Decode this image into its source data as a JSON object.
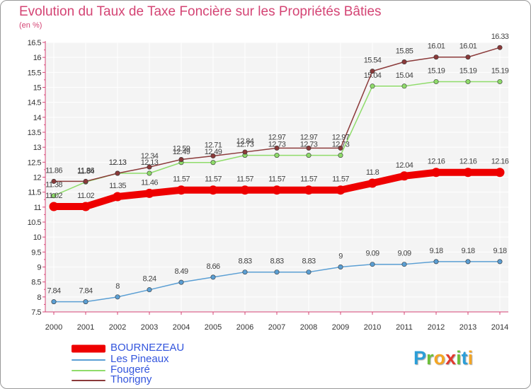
{
  "title": "Evolution du Taux de Taxe Foncière sur les Propriétés Bâties",
  "unit_label": "(en %)",
  "logo": {
    "letters": [
      "P",
      "r",
      "o",
      "x",
      "i",
      "t",
      "i"
    ],
    "colors": [
      "#2b9ed8",
      "#6cbf3a",
      "#f5a623",
      "#e23a2e",
      "#6cbf3a",
      "#2b9ed8",
      "#f5a623"
    ]
  },
  "chart_data": {
    "type": "line",
    "x": [
      2000,
      2001,
      2002,
      2003,
      2004,
      2005,
      2006,
      2007,
      2008,
      2009,
      2010,
      2011,
      2012,
      2013,
      2014
    ],
    "ylim": [
      7.5,
      16.5
    ],
    "yticks": [
      7.5,
      8,
      8.5,
      9,
      9.5,
      10,
      10.5,
      11,
      11.5,
      12,
      12.5,
      13,
      13.5,
      14,
      14.5,
      15,
      15.5,
      16,
      16.5
    ],
    "grid": true,
    "legend_position": "bottom-left",
    "series": [
      {
        "name": "BOURNEZEAU",
        "color": "#ee0000",
        "values": [
          11.02,
          11.02,
          11.35,
          11.46,
          11.57,
          11.57,
          11.57,
          11.57,
          11.57,
          11.57,
          11.8,
          12.04,
          12.16,
          12.16,
          12.16
        ],
        "labels": [
          "11.02",
          "11.02",
          "11.35",
          "11.46",
          "11.57",
          "11.57",
          "11.57",
          "11.57",
          "11.57",
          "11.57",
          "11.8",
          "12.04",
          "12.16",
          "12.16",
          "12.16"
        ]
      },
      {
        "name": "Les Pineaux",
        "color": "#5b9fd4",
        "values": [
          7.84,
          7.84,
          8,
          8.24,
          8.49,
          8.66,
          8.83,
          8.83,
          8.83,
          9,
          9.09,
          9.09,
          9.18,
          9.18,
          9.18
        ],
        "labels": [
          "7.84",
          "7.84",
          "8",
          "8.24",
          "8.49",
          "8.66",
          "8.83",
          "8.83",
          "8.83",
          "9",
          "9.09",
          "9.09",
          "9.18",
          "9.18",
          "9.18"
        ]
      },
      {
        "name": "Fougeré",
        "color": "#8fdc6a",
        "values": [
          11.38,
          11.84,
          12.13,
          12.13,
          12.49,
          12.49,
          12.73,
          12.73,
          12.73,
          12.73,
          15.04,
          15.04,
          15.19,
          15.19,
          15.19
        ],
        "labels": [
          "11.38",
          "11.84",
          "12.13",
          "12.13",
          "12.49",
          "12.49",
          "12.73",
          "12.73",
          "12.73",
          "12.73",
          "15.04",
          "15.04",
          "15.19",
          "15.19",
          "15.19"
        ]
      },
      {
        "name": "Thorigny",
        "color": "#8b3a3a",
        "values": [
          11.86,
          11.86,
          12.13,
          12.34,
          12.59,
          12.71,
          12.84,
          12.97,
          12.97,
          12.97,
          15.54,
          15.85,
          16.01,
          16.01,
          16.33
        ],
        "labels": [
          "11.86",
          "11.86",
          "12.13",
          "12.34",
          "12.59",
          "12.71",
          "12.84",
          "12.97",
          "12.97",
          "12.97",
          "15.54",
          "15.85",
          "16.01",
          "16.01",
          "16.33"
        ]
      }
    ]
  }
}
